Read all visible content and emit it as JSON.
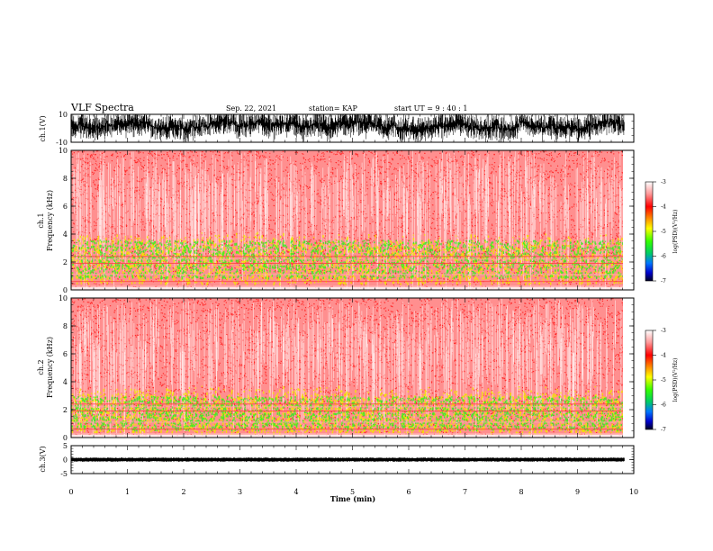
{
  "header": {
    "title": "VLF Spectra",
    "date": "Sep. 22, 2021",
    "station": "station= KAP",
    "start": "start  UT =  9 : 40 : 1"
  },
  "colors": {
    "spectro_bg": "#ff8f8f",
    "spectro_dense": "#ff1a1a",
    "yellow": "#f2e600",
    "green": "#33ee22",
    "line": "#000000"
  },
  "chart_data": [
    {
      "type": "line",
      "panel": "ch1-waveform",
      "ylabel": "ch.1(V)",
      "ylim": [
        -10,
        10
      ],
      "y_ticklabels": [
        "10",
        "-10"
      ],
      "xlim": [
        0,
        10
      ],
      "series": [
        {
          "values_range": [
            -10,
            10
          ],
          "typical_envelope": [
            -4,
            8
          ]
        }
      ]
    },
    {
      "type": "heatmap",
      "panel": "ch1-spectrogram",
      "ylabel": "ch.1\nFrequency  (kHz)",
      "ylim": [
        0,
        10
      ],
      "y_ticklabels": [
        "0",
        "2",
        "4",
        "6",
        "8",
        "10"
      ],
      "xlim": [
        0,
        10
      ],
      "data_extent_min": 9.83,
      "green_band_khz": [
        0.9,
        3.6
      ],
      "yellow_band_khz": [
        0.5,
        4.2
      ],
      "colorbar": {
        "label": "log(PSD)(V²/Hz)",
        "range": [
          -7,
          -3
        ],
        "ticklabels": [
          "-3",
          "-4",
          "-5",
          "-6",
          "-7"
        ]
      }
    },
    {
      "type": "heatmap",
      "panel": "ch2-spectrogram",
      "ylabel": "ch.2\nFrequency  (kHz)",
      "ylim": [
        0,
        10
      ],
      "y_ticklabels": [
        "0",
        "2",
        "4",
        "6",
        "8",
        "10"
      ],
      "xlim": [
        0,
        10
      ],
      "data_extent_min": 9.83,
      "green_band_khz": [
        0.6,
        3.0
      ],
      "yellow_band_khz": [
        0.4,
        3.8
      ],
      "colorbar": {
        "label": "log(PSD)(V²/Hz)",
        "range": [
          -7,
          -3
        ],
        "ticklabels": [
          "-3",
          "-4",
          "-5",
          "-6",
          "-7"
        ]
      }
    },
    {
      "type": "line",
      "panel": "ch3-waveform",
      "ylabel": "ch.3(V)",
      "ylim": [
        -5,
        5
      ],
      "y_ticklabels": [
        "5",
        "0",
        "-5"
      ],
      "xlim": [
        0,
        10
      ],
      "series": [
        {
          "values_range": [
            -0.5,
            0.5
          ],
          "typical_envelope": [
            -0.5,
            0.5
          ]
        }
      ]
    }
  ],
  "xaxis": {
    "label": "Time  (min)",
    "ticklabels": [
      "0",
      "1",
      "2",
      "3",
      "4",
      "5",
      "6",
      "7",
      "8",
      "9",
      "10"
    ]
  },
  "ylabels": {
    "ch1": "ch.1(V)",
    "ch1_spec_a": "ch.1",
    "ch1_spec_b": "Frequency  (kHz)",
    "ch2_spec_a": "ch.2",
    "ch2_spec_b": "Frequency  (kHz)",
    "ch3": "ch.3(V)"
  },
  "colorbar_label": "log(PSD)(V²/Hz)"
}
